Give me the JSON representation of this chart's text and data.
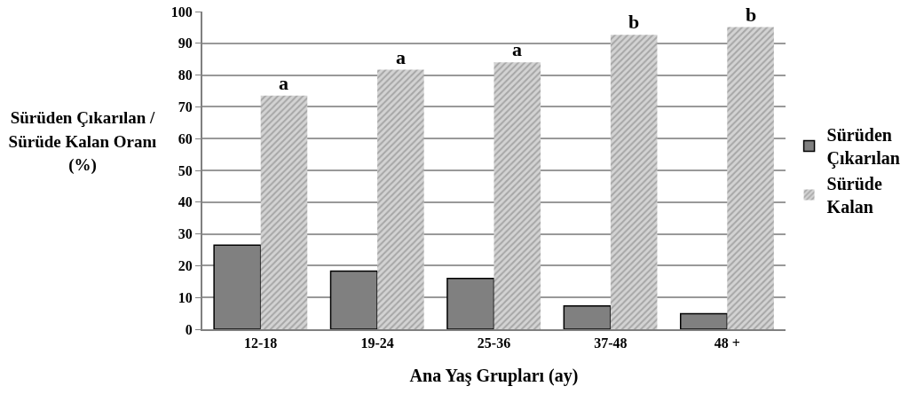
{
  "chart_data": {
    "type": "bar",
    "xlabel": "Ana Yaş Grupları (ay)",
    "ylabel": "Sürüden Çıkarılan / Sürüde Kalan Oranı (%)",
    "categories": [
      "12-18",
      "19-24",
      "25-36",
      "37-48",
      "48 +"
    ],
    "series": [
      {
        "name": "Sürüden Çıkarılan",
        "color": "#808080",
        "values": [
          26.5,
          18.3,
          16,
          7.3,
          4.9
        ]
      },
      {
        "name": "Sürüde Kalan",
        "color": "#a6a6a6",
        "values": [
          73.5,
          81.7,
          84,
          92.7,
          95.1
        ]
      }
    ],
    "ylim": [
      0,
      100
    ],
    "yticks": [
      0,
      10,
      20,
      30,
      40,
      50,
      60,
      70,
      80,
      90,
      100
    ],
    "grid": "y",
    "legend": "right",
    "annotations": [
      {
        "text": "a",
        "x": "12-18",
        "y": 73.5
      },
      {
        "text": "a",
        "x": "19-24",
        "y": 81.7
      },
      {
        "text": "a",
        "x": "25-36",
        "y": 84
      },
      {
        "text": "b",
        "x": "37-48",
        "y": 92.7
      },
      {
        "text": "b",
        "x": "48 +",
        "y": 95.1
      }
    ]
  }
}
